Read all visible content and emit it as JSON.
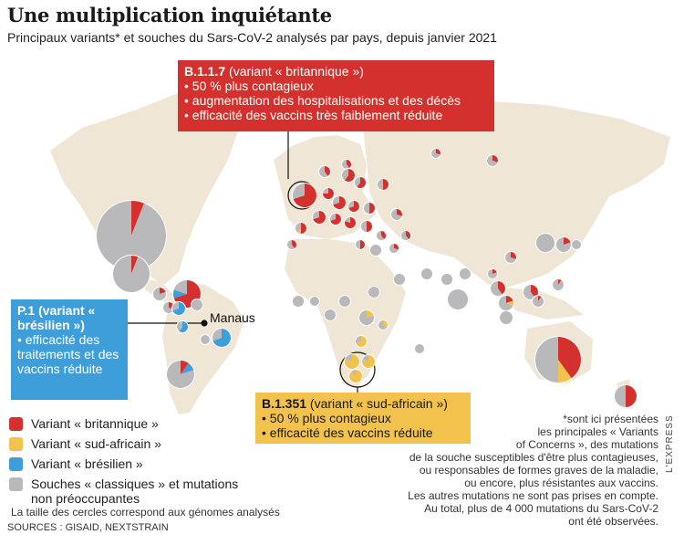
{
  "title": "Une multiplication inquiétante",
  "subtitle": "Principaux variants* et souches du Sars-CoV-2 analysés par pays, depuis janvier 2021",
  "colors": {
    "land": "#efe6d6",
    "ocean": "#ffffff",
    "britannique": "#d4302e",
    "sud_africain": "#f2c24c",
    "bresilien": "#3d9ed9",
    "classiques": "#b9b9bb"
  },
  "callouts": {
    "uk": {
      "heading": "B.1.1.7",
      "heading_rest": " (variant « britannique »)",
      "lines": [
        "• 50 % plus contagieux",
        "• augmentation des hospitalisations et des décès",
        "• efficacité des vaccins très faiblement réduite"
      ]
    },
    "br": {
      "heading": "P.1 (variant « brésilien »)",
      "lines": [
        "• efficacité des traitements et des vaccins réduite"
      ]
    },
    "sa": {
      "heading": "B.1.351",
      "heading_rest": " (variant « sud-africain »)",
      "lines": [
        "• 50 % plus contagieux",
        "• efficacité des vaccins réduite"
      ]
    }
  },
  "city_label": "Manaus",
  "legend": [
    {
      "label": "Variant « britannique »",
      "color": "#d4302e"
    },
    {
      "label": "Variant « sud-africain »",
      "color": "#f2c24c"
    },
    {
      "label": "Variant « brésilien »",
      "color": "#3d9ed9"
    },
    {
      "label": "Souches « classiques » et mutations non préoccupantes",
      "color": "#b9b9bb"
    }
  ],
  "size_note": "La taille des cercles correspond aux génomes analysés",
  "sources": "SOURCES : GISAID, NEXTSTRAIN",
  "footnote": [
    "*sont ici présentées",
    "les principales « Variants",
    "of Concerns », des mutations",
    "de la souche susceptibles d'être plus contagieuses,",
    "ou responsables de formes graves de la maladie,",
    "ou encore, plus résistantes aux vaccins.",
    "Les autres mutations ne sont pas prises en compte.",
    "Au total, plus de 4 000 mutations du Sars-CoV-2",
    "ont été observées."
  ],
  "credit": "L'EXPRESS"
}
